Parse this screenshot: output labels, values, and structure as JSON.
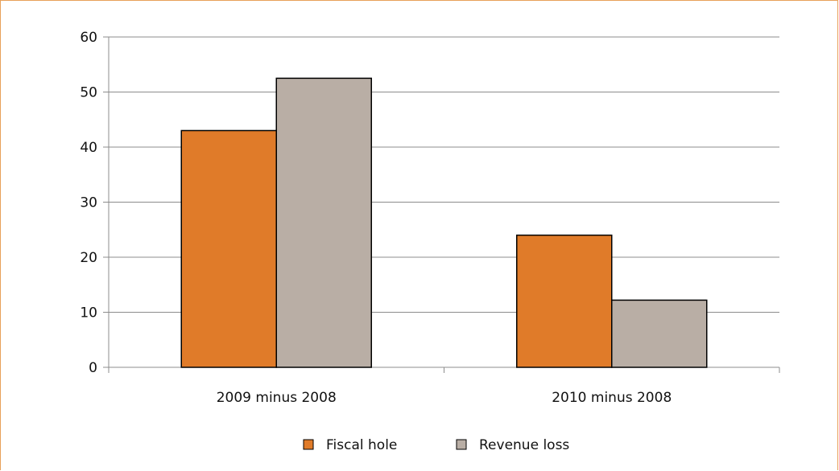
{
  "chart_data": {
    "type": "bar",
    "categories": [
      "2009 minus 2008",
      "2010 minus 2008"
    ],
    "series": [
      {
        "name": "Fiscal hole",
        "values": [
          43,
          24
        ],
        "color": "#e07b29"
      },
      {
        "name": "Revenue loss",
        "values": [
          52.5,
          12.2
        ],
        "color": "#b9aea5"
      }
    ],
    "ylim": [
      0,
      60
    ],
    "yticks": [
      0,
      10,
      20,
      30,
      40,
      50,
      60
    ],
    "grid": true,
    "legend": "bottom-center",
    "title": "",
    "xlabel": "",
    "ylabel": ""
  }
}
